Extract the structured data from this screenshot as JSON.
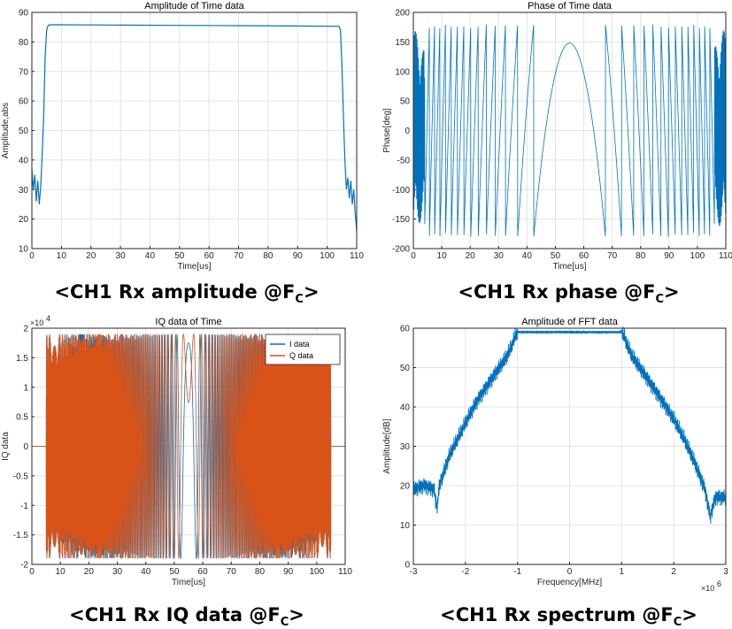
{
  "chart_data": [
    {
      "type": "line",
      "title": "Amplitude of Time data",
      "xlabel": "Time[us]",
      "ylabel": "Amplitude,abs",
      "xlim": [
        0,
        110
      ],
      "ylim": [
        10,
        90
      ],
      "xticks": [
        "0",
        "10",
        "20",
        "30",
        "40",
        "50",
        "60",
        "70",
        "80",
        "90",
        "100",
        "110"
      ],
      "yticks": [
        "10",
        "20",
        "30",
        "40",
        "50",
        "60",
        "70",
        "80",
        "90"
      ],
      "grid": true,
      "caption": {
        "prefix": "<CH1  Rx amplitude @F",
        "sub": "C",
        "suffix": ">"
      },
      "series": [
        {
          "color": "#0072bd",
          "x": [
            0,
            0.5,
            1,
            1.5,
            2,
            2.5,
            3,
            3.5,
            4,
            4.5,
            5,
            5.5,
            6,
            10,
            30,
            50,
            70,
            90,
            104,
            104.5,
            105,
            105.5,
            106,
            106.5,
            107,
            107.5,
            108,
            108.5,
            109,
            109.5,
            110
          ],
          "y": [
            37,
            30,
            35,
            26,
            33,
            25,
            31,
            42,
            55,
            75,
            84,
            85.6,
            85.8,
            85.8,
            85.7,
            85.6,
            85.5,
            85.4,
            85.3,
            84,
            72,
            55,
            40,
            30,
            34,
            27,
            33,
            25,
            30,
            22,
            16
          ]
        }
      ]
    },
    {
      "type": "line",
      "title": "Phase of Time data",
      "xlabel": "Time[us]",
      "ylabel": "Phase[deg]",
      "xlim": [
        0,
        110
      ],
      "ylim": [
        -200,
        200
      ],
      "xticks": [
        "0",
        "10",
        "20",
        "30",
        "40",
        "50",
        "60",
        "70",
        "80",
        "90",
        "100",
        "110"
      ],
      "yticks": [
        "-200",
        "-150",
        "-100",
        "-50",
        "0",
        "50",
        "100",
        "150",
        "200"
      ],
      "grid": true,
      "caption": {
        "prefix": "<CH1  Rx phase @F",
        "sub": "C",
        "suffix": ">"
      },
      "series": [
        {
          "color": "#0072bd",
          "model": "phase of linear chirp centered at 55 us, wrapped to ±180°, peak 148° at 55 us"
        }
      ]
    },
    {
      "type": "line",
      "title": "IQ data of Time",
      "xlabel": "Time[us]",
      "ylabel": "IQ data",
      "xlim": [
        0,
        110
      ],
      "ylim": [
        -20000,
        20000
      ],
      "exponent_label": "×10",
      "exponent_power": "4",
      "xticks": [
        "0",
        "10",
        "20",
        "30",
        "40",
        "50",
        "60",
        "70",
        "80",
        "90",
        "100",
        "110"
      ],
      "yticks": [
        "-2",
        "-1.5",
        "-1",
        "-0.5",
        "0",
        "0.5",
        "1",
        "1.5",
        "2"
      ],
      "grid": true,
      "legend": "top-right",
      "caption": {
        "prefix": "<CH1  Rx IQ data @F",
        "sub": "C",
        "suffix": ">"
      },
      "series": [
        {
          "name": "I data",
          "color": "#0072bd",
          "amplitude": 19000,
          "active_range": [
            5,
            105
          ]
        },
        {
          "name": "Q data",
          "color": "#d95319",
          "amplitude": 19000,
          "active_range": [
            5,
            105
          ]
        }
      ]
    },
    {
      "type": "line",
      "title": "Amplitude of FFT data",
      "xlabel": "Frequency[MHz]",
      "ylabel": "Amplitude[dB]",
      "xlim": [
        -3000000,
        3000000
      ],
      "ylim": [
        0,
        60
      ],
      "exponent_label": "×10",
      "exponent_power": "6",
      "xticks": [
        "-3",
        "-2",
        "-1",
        "0",
        "1",
        "2",
        "3"
      ],
      "yticks": [
        "0",
        "10",
        "20",
        "30",
        "40",
        "50",
        "60"
      ],
      "grid": true,
      "caption": {
        "prefix": "<CH1  Rx spectrum @F",
        "sub": "C",
        "suffix": ">"
      },
      "series": [
        {
          "color": "#0072bd",
          "x": [
            -3,
            -2.8,
            -2.6,
            -2.55,
            -2.5,
            -2.3,
            -2.0,
            -1.8,
            -1.6,
            -1.4,
            -1.2,
            -1.1,
            -1.05,
            -1.0,
            0,
            1.0,
            1.05,
            1.1,
            1.2,
            1.4,
            1.6,
            1.8,
            2.0,
            2.2,
            2.4,
            2.6,
            2.7,
            2.8,
            3.0
          ],
          "y": [
            19,
            20,
            19,
            14,
            20,
            28,
            36,
            41,
            45,
            49,
            53,
            56,
            58,
            59,
            59,
            59,
            58,
            56,
            53,
            49,
            45,
            41,
            37,
            32,
            26,
            19,
            12,
            17,
            17
          ]
        }
      ]
    }
  ]
}
